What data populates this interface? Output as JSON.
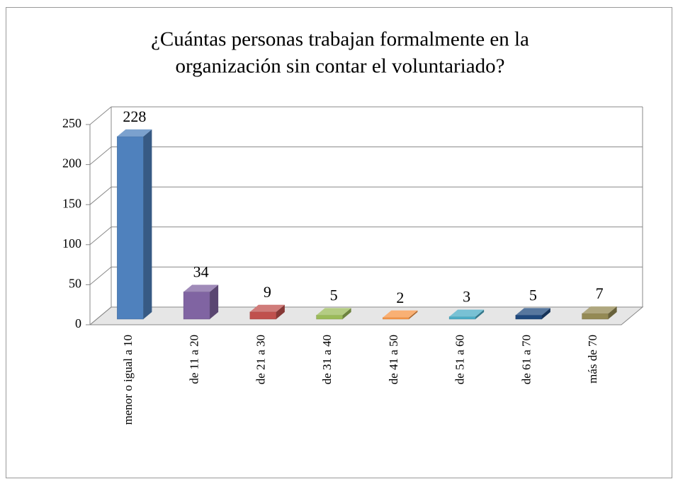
{
  "chart_data": {
    "type": "bar",
    "title": [
      "¿Cuántas personas trabajan formalmente en la",
      "organización sin contar el voluntariado?"
    ],
    "categories": [
      "menor o igual a 10",
      "de 11 a 20",
      "de 21 a 30",
      "de 31 a 40",
      "de 41 a 50",
      "de 51 a 60",
      "de 61 a 70",
      "más de 70"
    ],
    "values": [
      228,
      34,
      9,
      5,
      2,
      3,
      5,
      7
    ],
    "colors": [
      "#4f81bd",
      "#8064a2",
      "#c0504d",
      "#9bbb59",
      "#f79646",
      "#4bacc6",
      "#1f497d",
      "#948a54"
    ],
    "ylim": [
      0,
      250
    ],
    "yticks": [
      0,
      50,
      100,
      150,
      200,
      250
    ],
    "grid": true
  }
}
